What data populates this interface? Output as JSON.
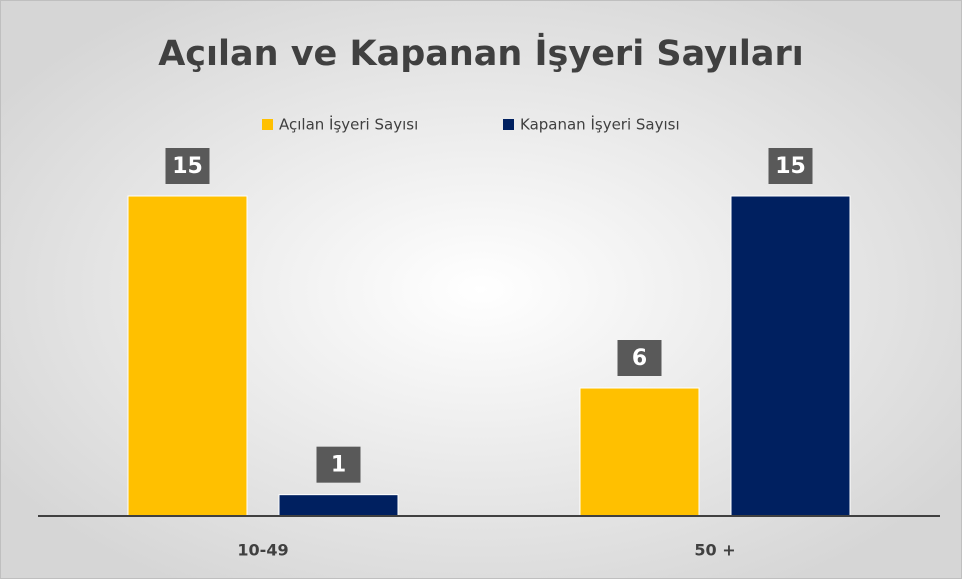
{
  "chart_data": {
    "type": "bar",
    "title": "Açılan ve Kapanan İşyeri Sayıları",
    "categories": [
      "10-49",
      "50 +"
    ],
    "series": [
      {
        "name": "Açılan İşyeri Sayısı",
        "color": "#FFC000",
        "values": [
          15,
          6
        ]
      },
      {
        "name": "Kapanan İşyeri Sayısı",
        "color": "#002060",
        "values": [
          1,
          15
        ]
      }
    ]
  }
}
